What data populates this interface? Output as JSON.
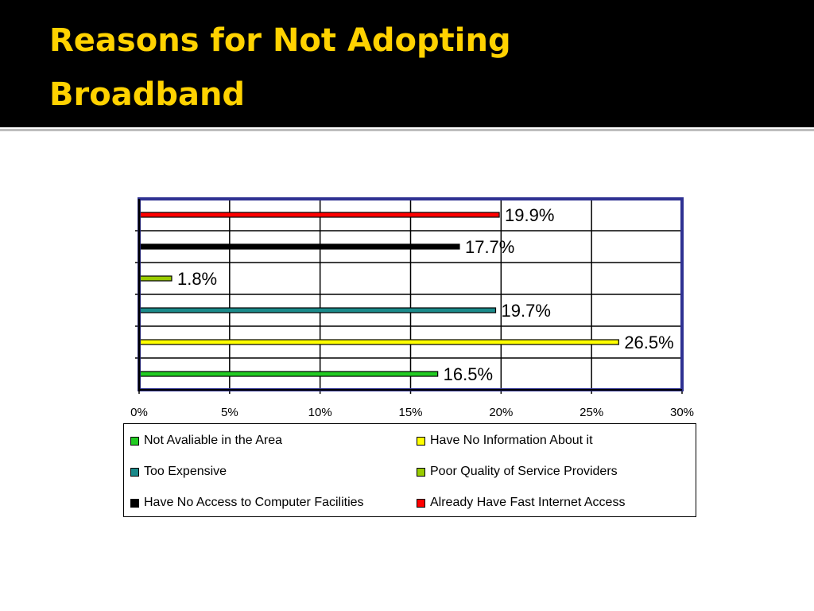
{
  "slide": {
    "title_line1": "Reasons for Not Adopting",
    "title_line2": "Broadband",
    "title_color": "#ffd200",
    "header_background": "#000000"
  },
  "chart_data": {
    "type": "bar",
    "orientation": "horizontal",
    "title": "",
    "xlabel": "",
    "ylabel": "",
    "xlim": [
      0,
      30
    ],
    "x_ticks": [
      "0%",
      "5%",
      "10%",
      "15%",
      "20%",
      "25%",
      "30%"
    ],
    "grid": true,
    "legend_position": "bottom",
    "frame_color": "#2e3192",
    "series": [
      {
        "name": "Not Avaliable in the Area",
        "value": 16.5,
        "label": "16.5%",
        "color": "#22cc22"
      },
      {
        "name": "Have No Information About it",
        "value": 26.5,
        "label": "26.5%",
        "color": "#ffff00"
      },
      {
        "name": "Too Expensive",
        "value": 19.7,
        "label": "19.7%",
        "color": "#1a8a8a"
      },
      {
        "name": "Poor Quality of Service Providers",
        "value": 1.8,
        "label": "1.8%",
        "color": "#99cc00"
      },
      {
        "name": "Have No Access to Computer Facilities",
        "value": 17.7,
        "label": "17.7%",
        "color": "#000000"
      },
      {
        "name": "Already Have Fast Internet Access",
        "value": 19.9,
        "label": "19.9%",
        "color": "#ff0000"
      }
    ]
  }
}
